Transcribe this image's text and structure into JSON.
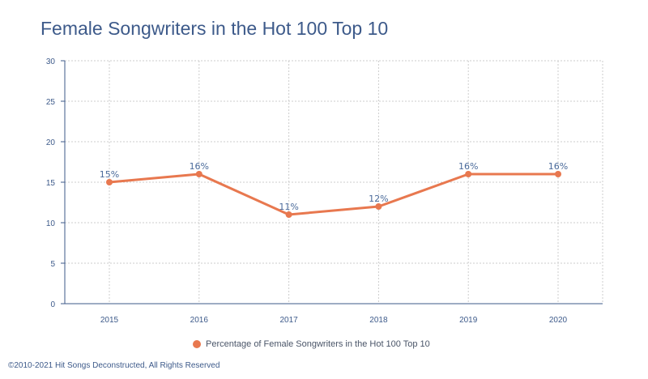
{
  "chart_data": {
    "type": "line",
    "title": "Female Songwriters in the Hot 100 Top 10",
    "xlabel": "",
    "ylabel": "",
    "categories": [
      "2015",
      "2016",
      "2017",
      "2018",
      "2019",
      "2020"
    ],
    "series": [
      {
        "name": "Percentage of Female Songwriters in the Hot 100 Top 10",
        "values": [
          15,
          16,
          11,
          12,
          16,
          16
        ],
        "labels": [
          "15%",
          "16%",
          "11%",
          "12%",
          "16%",
          "16%"
        ],
        "color": "#e8784f"
      }
    ],
    "ylim": [
      0,
      30
    ],
    "yticks": [
      0,
      5,
      10,
      15,
      20,
      25,
      30
    ],
    "grid": true,
    "grid_style": "dotted",
    "legend_position": "bottom-center"
  },
  "footer": {
    "copyright": "©2010-2021 Hit Songs Deconstructed, All Rights Reserved"
  },
  "colors": {
    "title": "#3d5a8a",
    "axis_text": "#3d5a8a",
    "grid": "#cccccc",
    "series": "#e8784f"
  }
}
